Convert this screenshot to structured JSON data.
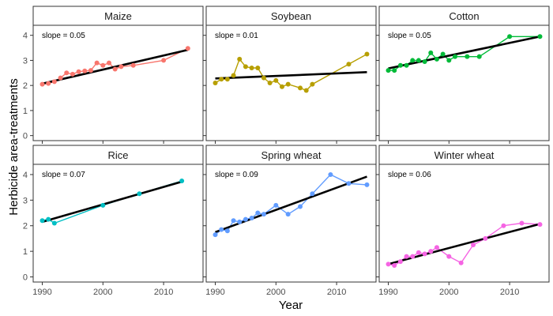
{
  "figure": {
    "xlabel": "Year",
    "ylabel": "Herbicide area-treatments"
  },
  "chart_data": {
    "type": "line",
    "xlim": [
      1988.5,
      2016.5
    ],
    "ylim": [
      -0.2,
      4.4
    ],
    "x_ticks": [
      1990,
      2000,
      2010
    ],
    "y_ticks": [
      0,
      1,
      2,
      3,
      4
    ],
    "grid": false,
    "panels": [
      {
        "name": "Maize",
        "slope_label": "slope = 0.05",
        "color": "#F8766D",
        "trend": [
          [
            1990,
            2.07
          ],
          [
            2014,
            3.42
          ]
        ],
        "x": [
          1990,
          1991,
          1992,
          1993,
          1994,
          1995,
          1996,
          1997,
          1998,
          1999,
          2000,
          2001,
          2002,
          2003,
          2005,
          2010,
          2014
        ],
        "y": [
          2.05,
          2.08,
          2.15,
          2.3,
          2.5,
          2.45,
          2.55,
          2.58,
          2.6,
          2.9,
          2.8,
          2.9,
          2.65,
          2.75,
          2.8,
          3.0,
          3.48
        ]
      },
      {
        "name": "Soybean",
        "slope_label": "slope = 0.01",
        "color": "#B79F00",
        "trend": [
          [
            1990,
            2.28
          ],
          [
            2015,
            2.53
          ]
        ],
        "x": [
          1990,
          1991,
          1992,
          1993,
          1994,
          1995,
          1996,
          1997,
          1998,
          1999,
          2000,
          2001,
          2002,
          2004,
          2005,
          2006,
          2012,
          2015
        ],
        "y": [
          2.1,
          2.25,
          2.25,
          2.4,
          3.05,
          2.75,
          2.7,
          2.7,
          2.3,
          2.1,
          2.2,
          1.95,
          2.05,
          1.9,
          1.8,
          2.05,
          2.85,
          3.25
        ]
      },
      {
        "name": "Cotton",
        "slope_label": "slope = 0.05",
        "color": "#00BA38",
        "trend": [
          [
            1990,
            2.68
          ],
          [
            2015,
            3.95
          ]
        ],
        "x": [
          1990,
          1991,
          1992,
          1993,
          1994,
          1995,
          1996,
          1997,
          1998,
          1999,
          2000,
          2001,
          2003,
          2005,
          2010,
          2015
        ],
        "y": [
          2.6,
          2.6,
          2.8,
          2.8,
          3.0,
          3.0,
          2.95,
          3.3,
          3.05,
          3.25,
          3.0,
          3.15,
          3.15,
          3.15,
          3.95,
          3.95
        ]
      },
      {
        "name": "Rice",
        "slope_label": "slope = 0.07",
        "color": "#00BFC4",
        "trend": [
          [
            1990,
            2.15
          ],
          [
            2013,
            3.72
          ]
        ],
        "x": [
          1990,
          1991,
          1992,
          2000,
          2006,
          2013
        ],
        "y": [
          2.2,
          2.25,
          2.1,
          2.8,
          3.25,
          3.75
        ]
      },
      {
        "name": "Spring wheat",
        "slope_label": "slope = 0.09",
        "color": "#619CFF",
        "trend": [
          [
            1990,
            1.75
          ],
          [
            2015,
            3.92
          ]
        ],
        "x": [
          1990,
          1991,
          1992,
          1993,
          1994,
          1995,
          1996,
          1997,
          1998,
          2000,
          2002,
          2004,
          2006,
          2009,
          2012,
          2015
        ],
        "y": [
          1.65,
          1.85,
          1.8,
          2.2,
          2.15,
          2.25,
          2.3,
          2.5,
          2.45,
          2.8,
          2.45,
          2.75,
          3.25,
          4.0,
          3.65,
          3.6
        ]
      },
      {
        "name": "Winter wheat",
        "slope_label": "slope = 0.06",
        "color": "#F564E3",
        "trend": [
          [
            1990,
            0.5
          ],
          [
            2015,
            2.07
          ]
        ],
        "x": [
          1990,
          1991,
          1992,
          1993,
          1994,
          1995,
          1996,
          1997,
          1998,
          2000,
          2002,
          2004,
          2006,
          2009,
          2012,
          2015
        ],
        "y": [
          0.5,
          0.45,
          0.6,
          0.8,
          0.8,
          0.95,
          0.9,
          1.0,
          1.15,
          0.8,
          0.55,
          1.25,
          1.5,
          2.0,
          2.1,
          2.05
        ]
      }
    ]
  }
}
